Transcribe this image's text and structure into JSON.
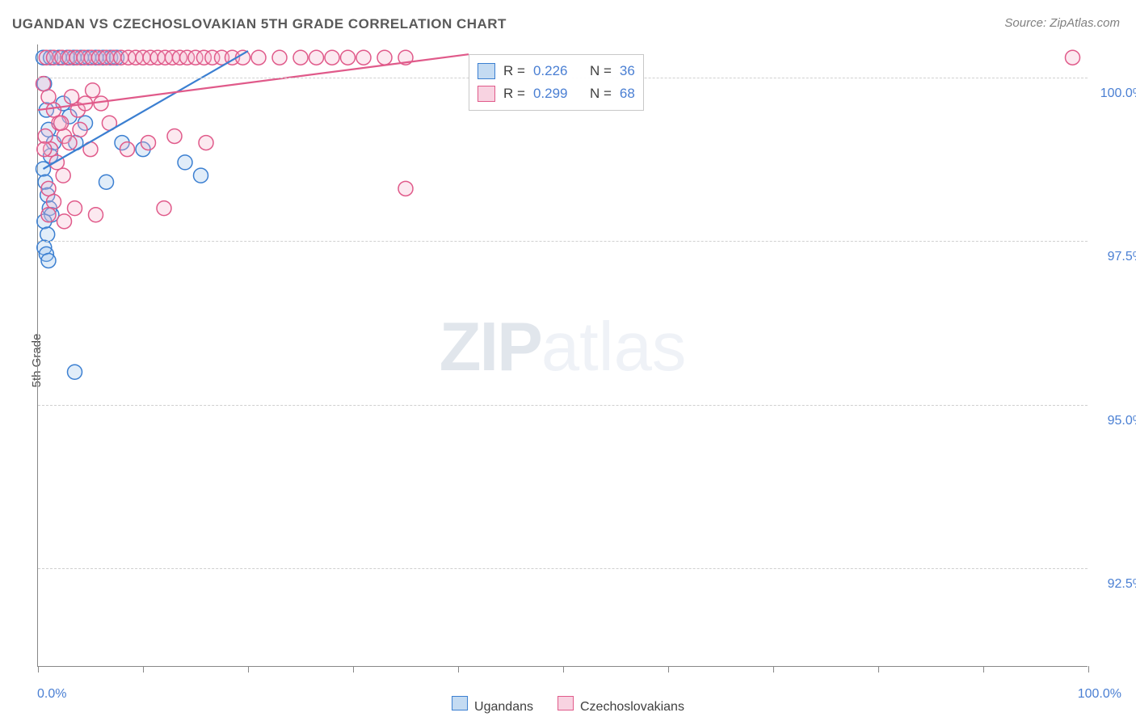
{
  "title": "UGANDAN VS CZECHOSLOVAKIAN 5TH GRADE CORRELATION CHART",
  "source_prefix": "Source: ",
  "source_name": "ZipAtlas.com",
  "y_axis_label": "5th Grade",
  "watermark_bold": "ZIP",
  "watermark_light": "atlas",
  "chart": {
    "type": "scatter",
    "xlim": [
      0,
      100
    ],
    "ylim": [
      91.0,
      100.5
    ],
    "x_tick_positions": [
      0,
      10,
      20,
      30,
      40,
      50,
      60,
      70,
      80,
      90,
      100
    ],
    "x_tick_labels_shown": {
      "0": "0.0%",
      "100": "100.0%"
    },
    "y_gridlines": [
      92.5,
      95.0,
      97.5,
      100.0
    ],
    "y_tick_labels": [
      "92.5%",
      "95.0%",
      "97.5%",
      "100.0%"
    ],
    "grid_color": "#d0d0d0",
    "axis_color": "#888888",
    "tick_label_color": "#4a7fd3",
    "marker_radius": 9,
    "marker_stroke_width": 1.5,
    "fill_opacity": 0.3
  },
  "series": [
    {
      "name": "Ugandans",
      "color_stroke": "#3b7fd1",
      "color_fill": "#9dc3ea",
      "R": "0.226",
      "N": "36",
      "trend": {
        "x1": 0.5,
        "y1": 98.6,
        "x2": 20.0,
        "y2": 100.4,
        "width": 2.2
      },
      "points": [
        [
          0.5,
          100.3
        ],
        [
          1.2,
          100.3
        ],
        [
          2.0,
          100.3
        ],
        [
          2.8,
          100.3
        ],
        [
          3.4,
          100.3
        ],
        [
          4.1,
          100.3
        ],
        [
          4.8,
          100.3
        ],
        [
          5.5,
          100.3
        ],
        [
          6.2,
          100.3
        ],
        [
          6.9,
          100.3
        ],
        [
          0.6,
          99.9
        ],
        [
          0.8,
          99.5
        ],
        [
          1.0,
          99.2
        ],
        [
          1.5,
          99.0
        ],
        [
          1.2,
          98.8
        ],
        [
          0.5,
          98.6
        ],
        [
          0.7,
          98.4
        ],
        [
          0.9,
          98.2
        ],
        [
          1.1,
          98.0
        ],
        [
          1.3,
          97.9
        ],
        [
          0.6,
          97.8
        ],
        [
          2.4,
          99.6
        ],
        [
          3.0,
          99.4
        ],
        [
          3.6,
          99.0
        ],
        [
          4.5,
          99.3
        ],
        [
          8.0,
          99.0
        ],
        [
          6.5,
          98.4
        ],
        [
          10.0,
          98.9
        ],
        [
          14.0,
          98.7
        ],
        [
          0.9,
          97.6
        ],
        [
          0.6,
          97.4
        ],
        [
          0.8,
          97.3
        ],
        [
          1.0,
          97.2
        ],
        [
          3.5,
          95.5
        ],
        [
          15.5,
          98.5
        ],
        [
          7.5,
          100.3
        ]
      ]
    },
    {
      "name": "Czechoslovakians",
      "color_stroke": "#e05a8a",
      "color_fill": "#f4b6cd",
      "R": "0.299",
      "N": "68",
      "trend": {
        "x1": 0.0,
        "y1": 99.5,
        "x2": 41.0,
        "y2": 100.35,
        "width": 2.2
      },
      "points": [
        [
          0.8,
          100.3
        ],
        [
          1.5,
          100.3
        ],
        [
          2.3,
          100.3
        ],
        [
          3.0,
          100.3
        ],
        [
          3.7,
          100.3
        ],
        [
          4.4,
          100.3
        ],
        [
          5.1,
          100.3
        ],
        [
          5.8,
          100.3
        ],
        [
          6.5,
          100.3
        ],
        [
          7.2,
          100.3
        ],
        [
          7.9,
          100.3
        ],
        [
          8.6,
          100.3
        ],
        [
          9.3,
          100.3
        ],
        [
          10.0,
          100.3
        ],
        [
          10.7,
          100.3
        ],
        [
          11.4,
          100.3
        ],
        [
          12.1,
          100.3
        ],
        [
          12.8,
          100.3
        ],
        [
          13.5,
          100.3
        ],
        [
          14.2,
          100.3
        ],
        [
          15.0,
          100.3
        ],
        [
          15.8,
          100.3
        ],
        [
          16.6,
          100.3
        ],
        [
          17.5,
          100.3
        ],
        [
          18.5,
          100.3
        ],
        [
          19.5,
          100.3
        ],
        [
          21.0,
          100.3
        ],
        [
          23.0,
          100.3
        ],
        [
          25.0,
          100.3
        ],
        [
          26.5,
          100.3
        ],
        [
          28.0,
          100.3
        ],
        [
          29.5,
          100.3
        ],
        [
          31.0,
          100.3
        ],
        [
          33.0,
          100.3
        ],
        [
          35.0,
          100.3
        ],
        [
          0.5,
          99.9
        ],
        [
          1.0,
          99.7
        ],
        [
          1.5,
          99.5
        ],
        [
          2.0,
          99.3
        ],
        [
          2.5,
          99.1
        ],
        [
          3.2,
          99.7
        ],
        [
          3.8,
          99.5
        ],
        [
          4.5,
          99.6
        ],
        [
          5.2,
          99.8
        ],
        [
          6.0,
          99.6
        ],
        [
          0.7,
          99.1
        ],
        [
          1.2,
          98.9
        ],
        [
          1.8,
          98.7
        ],
        [
          2.4,
          98.5
        ],
        [
          3.0,
          99.0
        ],
        [
          4.0,
          99.2
        ],
        [
          5.0,
          98.9
        ],
        [
          1.0,
          98.3
        ],
        [
          1.5,
          98.1
        ],
        [
          2.2,
          99.3
        ],
        [
          6.8,
          99.3
        ],
        [
          8.5,
          98.9
        ],
        [
          10.5,
          99.0
        ],
        [
          13.0,
          99.1
        ],
        [
          16.0,
          99.0
        ],
        [
          3.5,
          98.0
        ],
        [
          5.5,
          97.9
        ],
        [
          12.0,
          98.0
        ],
        [
          35.0,
          98.3
        ],
        [
          1.0,
          97.9
        ],
        [
          2.5,
          97.8
        ],
        [
          98.5,
          100.3
        ],
        [
          0.6,
          98.9
        ]
      ]
    }
  ],
  "stats_box": {
    "x_percent": 41.0,
    "y_value": 100.35,
    "labels": {
      "R_prefix": "R = ",
      "N_prefix": "N = "
    }
  },
  "legend_bottom": [
    {
      "swatch_fill": "#9dc3ea",
      "swatch_stroke": "#3b7fd1",
      "label": "Ugandans"
    },
    {
      "swatch_fill": "#f4b6cd",
      "swatch_stroke": "#e05a8a",
      "label": "Czechoslovakians"
    }
  ]
}
